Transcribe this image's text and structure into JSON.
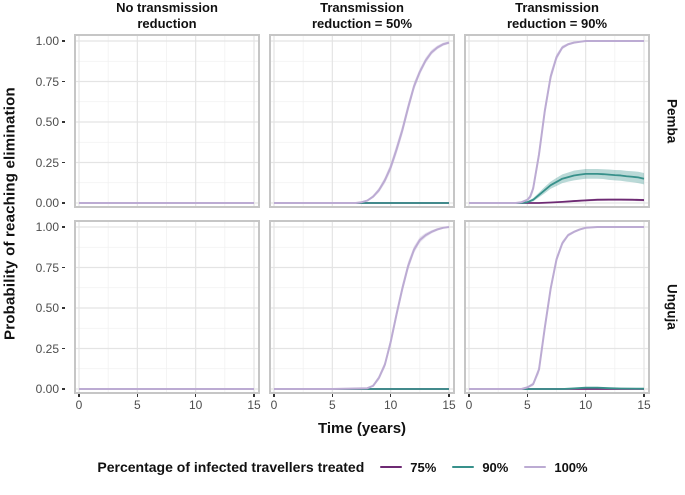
{
  "figure": {
    "y_axis_title": "Probability of reaching elimination",
    "x_axis_title": "Time (years)",
    "col_labels": [
      "No transmission\nreduction",
      "Transmission\nreduction = 50%",
      "Transmission\nreduction = 90%"
    ],
    "row_labels": [
      "Pemba",
      "Unguja"
    ],
    "y_tick_labels": [
      "1.00",
      "0.75",
      "0.50",
      "0.25",
      "0.00"
    ],
    "y_tick_values": [
      1,
      0.75,
      0.5,
      0.25,
      0
    ],
    "x_tick_labels": [
      "0",
      "5",
      "10",
      "15"
    ],
    "x_tick_values": [
      0,
      5,
      10,
      15
    ],
    "legend": {
      "title": "Percentage of infected travellers treated",
      "entries": [
        {
          "label": "75%",
          "color": "#6e2a73"
        },
        {
          "label": "90%",
          "color": "#38918b"
        },
        {
          "label": "100%",
          "color": "#bcabd3"
        }
      ]
    },
    "colors": {
      "grid_major": "#e4e4e4",
      "grid_minor": "#f1f1f1",
      "panel_border": "#c6c6c6",
      "tick_text": "#4d4d4d",
      "title_text": "#111111"
    }
  },
  "chart_data": {
    "type": "line",
    "title": "",
    "xlabel": "Time (years)",
    "ylabel": "Probability of reaching elimination",
    "legend_title": "Percentage of infected travellers treated",
    "legend_position": "bottom",
    "grid": true,
    "x_range": [
      0,
      15
    ],
    "y_range": [
      0,
      1
    ],
    "x_major_ticks": [
      0,
      5,
      10,
      15
    ],
    "x_minor_ticks": [
      2.5,
      7.5,
      12.5
    ],
    "y_major_ticks": [
      0,
      0.25,
      0.5,
      0.75,
      1.0
    ],
    "y_minor_ticks": [
      0.125,
      0.375,
      0.625,
      0.875
    ],
    "facet": {
      "rows": [
        "Pemba",
        "Unguja"
      ],
      "cols": [
        "No transmission reduction",
        "Transmission reduction = 50%",
        "Transmission reduction = 90%"
      ]
    },
    "series_colors": {
      "75%": "#6e2a73",
      "90%": "#38918b",
      "100%": "#bcabd3"
    },
    "panels": [
      {
        "row": "Pemba",
        "col": "No transmission reduction",
        "series": [
          {
            "label": "75%",
            "x": [
              0,
              15
            ],
            "y": [
              0,
              0
            ]
          },
          {
            "label": "90%",
            "x": [
              0,
              15
            ],
            "y": [
              0,
              0
            ]
          },
          {
            "label": "100%",
            "x": [
              0,
              15
            ],
            "y": [
              0,
              0
            ]
          }
        ]
      },
      {
        "row": "Pemba",
        "col": "Transmission reduction = 50%",
        "series": [
          {
            "label": "75%",
            "x": [
              0,
              15
            ],
            "y": [
              0,
              0
            ]
          },
          {
            "label": "90%",
            "x": [
              0,
              15
            ],
            "y": [
              0,
              0
            ]
          },
          {
            "label": "100%",
            "x": [
              0,
              5,
              7,
              7.5,
              8,
              8.5,
              9,
              9.5,
              10,
              10.5,
              11,
              11.5,
              12,
              12.5,
              13,
              13.5,
              14,
              14.5,
              15
            ],
            "y": [
              0,
              0,
              0,
              0.005,
              0.015,
              0.04,
              0.08,
              0.14,
              0.22,
              0.33,
              0.45,
              0.59,
              0.72,
              0.81,
              0.88,
              0.93,
              0.96,
              0.98,
              0.99
            ],
            "band": [
              0,
              0,
              0,
              0.003,
              0.005,
              0.01,
              0.015,
              0.02,
              0.025,
              0.03,
              0.03,
              0.03,
              0.025,
              0.02,
              0.018,
              0.015,
              0.012,
              0.01,
              0.008
            ]
          }
        ]
      },
      {
        "row": "Pemba",
        "col": "Transmission reduction = 90%",
        "series": [
          {
            "label": "75%",
            "x": [
              0,
              6,
              7,
              8,
              9,
              10,
              11,
              12,
              13,
              14,
              15
            ],
            "y": [
              0,
              0,
              0.003,
              0.007,
              0.012,
              0.016,
              0.02,
              0.021,
              0.021,
              0.02,
              0.018
            ],
            "band": [
              0,
              0,
              0.002,
              0.004,
              0.005,
              0.006,
              0.007,
              0.007,
              0.007,
              0.007,
              0.007
            ]
          },
          {
            "label": "90%",
            "x": [
              0,
              4.5,
              5,
              5.5,
              6,
              6.5,
              7,
              7.5,
              8,
              8.5,
              9,
              9.5,
              10,
              10.5,
              11,
              11.5,
              12,
              12.5,
              13,
              13.5,
              14,
              14.5,
              15
            ],
            "y": [
              0,
              0,
              0.005,
              0.02,
              0.05,
              0.08,
              0.11,
              0.13,
              0.15,
              0.16,
              0.17,
              0.175,
              0.18,
              0.18,
              0.18,
              0.178,
              0.175,
              0.172,
              0.17,
              0.165,
              0.162,
              0.158,
              0.15
            ],
            "band": [
              0,
              0,
              0.004,
              0.01,
              0.015,
              0.02,
              0.022,
              0.025,
              0.027,
              0.028,
              0.03,
              0.03,
              0.03,
              0.03,
              0.03,
              0.03,
              0.032,
              0.032,
              0.033,
              0.033,
              0.034,
              0.035,
              0.035
            ]
          },
          {
            "label": "100%",
            "x": [
              0,
              4,
              4.5,
              5,
              5.25,
              5.5,
              6,
              6.5,
              7,
              7.5,
              8,
              8.5,
              9,
              9.5,
              10,
              15
            ],
            "y": [
              0,
              0,
              0.005,
              0.02,
              0.04,
              0.09,
              0.3,
              0.57,
              0.78,
              0.9,
              0.96,
              0.98,
              0.99,
              0.995,
              1,
              1
            ],
            "band": [
              0,
              0,
              0.004,
              0.008,
              0.015,
              0.025,
              0.035,
              0.035,
              0.03,
              0.02,
              0.012,
              0.008,
              0.005,
              0.004,
              0.003,
              0.003
            ]
          }
        ]
      },
      {
        "row": "Unguja",
        "col": "No transmission reduction",
        "series": [
          {
            "label": "75%",
            "x": [
              0,
              15
            ],
            "y": [
              0,
              0
            ]
          },
          {
            "label": "90%",
            "x": [
              0,
              15
            ],
            "y": [
              0,
              0
            ]
          },
          {
            "label": "100%",
            "x": [
              0,
              15
            ],
            "y": [
              0,
              0
            ]
          }
        ]
      },
      {
        "row": "Unguja",
        "col": "Transmission reduction = 50%",
        "series": [
          {
            "label": "75%",
            "x": [
              0,
              15
            ],
            "y": [
              0,
              0
            ]
          },
          {
            "label": "90%",
            "x": [
              0,
              15
            ],
            "y": [
              0,
              0
            ]
          },
          {
            "label": "100%",
            "x": [
              0,
              5,
              8,
              8.5,
              9,
              9.5,
              10,
              10.5,
              11,
              11.5,
              12,
              12.5,
              13,
              13.5,
              14,
              14.5,
              15
            ],
            "y": [
              0,
              0,
              0.005,
              0.02,
              0.07,
              0.15,
              0.29,
              0.46,
              0.62,
              0.76,
              0.86,
              0.92,
              0.95,
              0.97,
              0.985,
              0.995,
              1
            ],
            "band": [
              0,
              0,
              0.003,
              0.008,
              0.015,
              0.02,
              0.025,
              0.03,
              0.03,
              0.028,
              0.022,
              0.018,
              0.014,
              0.01,
              0.008,
              0.005,
              0.004
            ]
          }
        ]
      },
      {
        "row": "Unguja",
        "col": "Transmission reduction = 90%",
        "series": [
          {
            "label": "75%",
            "x": [
              0,
              15
            ],
            "y": [
              0,
              0
            ]
          },
          {
            "label": "90%",
            "x": [
              0,
              8,
              9,
              10,
              11,
              12,
              13,
              15
            ],
            "y": [
              0,
              0,
              0.004,
              0.008,
              0.008,
              0.005,
              0.003,
              0.002
            ]
          },
          {
            "label": "100%",
            "x": [
              0,
              4.5,
              5,
              5.5,
              6,
              6.5,
              7,
              7.5,
              8,
              8.5,
              9,
              9.5,
              10,
              11,
              15
            ],
            "y": [
              0,
              0,
              0.01,
              0.03,
              0.12,
              0.38,
              0.62,
              0.8,
              0.9,
              0.95,
              0.97,
              0.985,
              0.995,
              1,
              1
            ],
            "band": [
              0,
              0,
              0.005,
              0.012,
              0.025,
              0.035,
              0.03,
              0.022,
              0.015,
              0.01,
              0.008,
              0.006,
              0.004,
              0.003,
              0.003
            ]
          }
        ]
      }
    ]
  }
}
